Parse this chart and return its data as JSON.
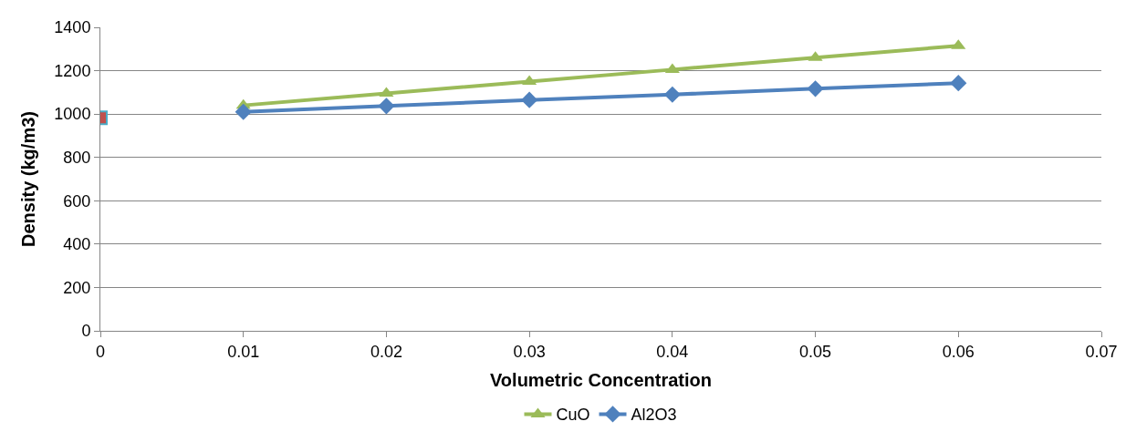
{
  "chart_data": {
    "type": "line",
    "xlabel": "Volumetric Concentration",
    "ylabel": "Density (kg/m3)",
    "xlim": [
      0,
      0.07
    ],
    "xticks": [
      0,
      0.01,
      0.02,
      0.03,
      0.04,
      0.05,
      0.06,
      0.07
    ],
    "ylim": [
      0,
      1400
    ],
    "yticks": [
      0,
      200,
      400,
      600,
      800,
      1000,
      1200,
      1400
    ],
    "grid": "y",
    "legend": "bottom",
    "series": [
      {
        "name": "CuO",
        "color": "#9bbb59",
        "marker": "triangle",
        "x": [
          0.01,
          0.02,
          0.03,
          0.04,
          0.05,
          0.06
        ],
        "values": [
          1040,
          1095,
          1150,
          1205,
          1260,
          1315
        ]
      },
      {
        "name": "Al2O3",
        "color": "#4f81bd",
        "marker": "diamond",
        "x": [
          0.01,
          0.02,
          0.03,
          0.04,
          0.05,
          0.06
        ],
        "values": [
          1010,
          1037,
          1065,
          1090,
          1117,
          1143
        ]
      },
      {
        "type": "scatter",
        "color": "#c0504d",
        "marker": "square",
        "x": [
          0
        ],
        "values": [
          983
        ]
      }
    ]
  }
}
